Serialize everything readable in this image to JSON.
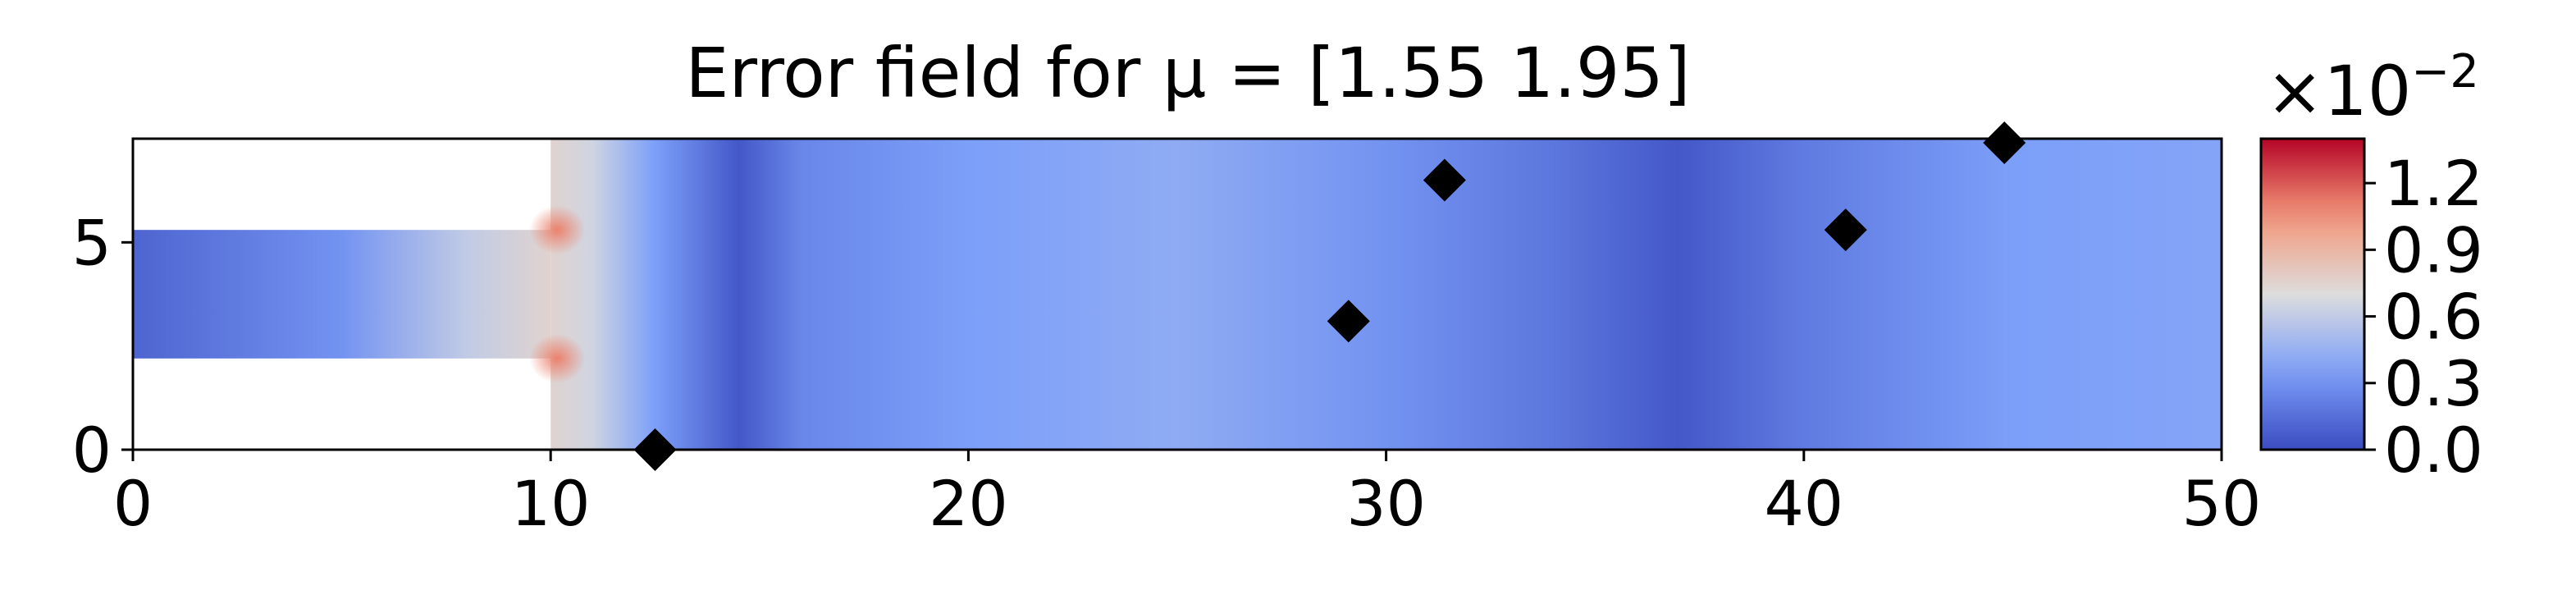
{
  "chart_data": {
    "type": "heatmap",
    "title": "Error field for μ = [1.55 1.95]",
    "xlim": [
      0,
      50
    ],
    "ylim": [
      0,
      7.5
    ],
    "x_ticks": [
      0,
      10,
      20,
      30,
      40,
      50
    ],
    "y_ticks": [
      0,
      5
    ],
    "domain": {
      "inlet_channel": {
        "x": [
          0,
          10
        ],
        "y": [
          2.2,
          5.3
        ]
      },
      "main_channel": {
        "x": [
          10,
          50
        ],
        "y": [
          0,
          7.5
        ]
      }
    },
    "markers": {
      "shape": "diamond",
      "color": "#000000",
      "points": [
        {
          "x": 12.5,
          "y": 0.0
        },
        {
          "x": 29.1,
          "y": 3.1
        },
        {
          "x": 31.4,
          "y": 6.5
        },
        {
          "x": 41.0,
          "y": 5.3
        },
        {
          "x": 44.8,
          "y": 7.4
        }
      ]
    },
    "colorbar": {
      "colormap": "coolwarm",
      "range": [
        0.0,
        1.4
      ],
      "tick_values": [
        0.0,
        0.3,
        0.6,
        0.9,
        1.2
      ],
      "tick_labels": [
        "0.0",
        "0.3",
        "0.6",
        "0.9",
        "1.2"
      ],
      "multiplier_base": "×10",
      "multiplier_exponent": "−2"
    },
    "field_profile_x": [
      {
        "x": 0,
        "v": 0.1
      },
      {
        "x": 5,
        "v": 0.3
      },
      {
        "x": 8,
        "v": 0.6
      },
      {
        "x": 10,
        "v": 0.75
      },
      {
        "x": 11,
        "v": 0.65
      },
      {
        "x": 12.5,
        "v": 0.35
      },
      {
        "x": 14.5,
        "v": 0.05
      },
      {
        "x": 16,
        "v": 0.25
      },
      {
        "x": 20,
        "v": 0.35
      },
      {
        "x": 25,
        "v": 0.42
      },
      {
        "x": 30,
        "v": 0.3
      },
      {
        "x": 34,
        "v": 0.18
      },
      {
        "x": 37,
        "v": 0.05
      },
      {
        "x": 40,
        "v": 0.2
      },
      {
        "x": 45,
        "v": 0.35
      },
      {
        "x": 50,
        "v": 0.38
      }
    ],
    "hotspots": [
      {
        "x": 10,
        "y": 5.3,
        "v": 1.1
      },
      {
        "x": 10,
        "y": 2.2,
        "v": 1.1
      }
    ]
  },
  "colors": {
    "cmap_low": "#3b4cc0",
    "cmap_mid": "#dddddd",
    "cmap_high": "#b40426",
    "axis": "#000000",
    "marker": "#000000"
  }
}
